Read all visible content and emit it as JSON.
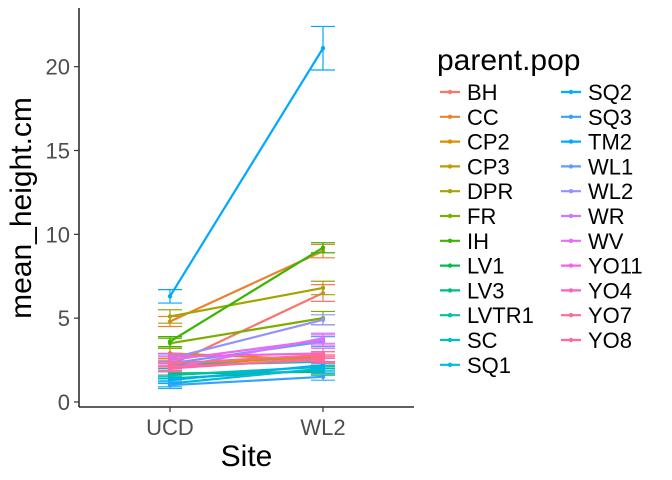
{
  "chart_data": {
    "type": "line",
    "xlabel": "Site",
    "ylabel": "mean_height.cm",
    "categories": [
      "UCD",
      "WL2"
    ],
    "ylim": [
      -0.3,
      23.5
    ],
    "yticks": [
      0,
      5,
      10,
      15,
      20
    ],
    "grid": false,
    "error_bars": true,
    "legend": {
      "title": "parent.pop",
      "placement": "right",
      "columns": 2
    },
    "series": [
      {
        "name": "BH",
        "color": "#F8766D",
        "values": [
          2.2,
          6.5
        ],
        "errors": [
          0.2,
          0.5
        ]
      },
      {
        "name": "CC",
        "color": "#EA8331",
        "values": [
          4.8,
          9.0
        ],
        "errors": [
          0.3,
          0.4
        ]
      },
      {
        "name": "CP2",
        "color": "#D89000",
        "values": [
          2.9,
          2.5
        ],
        "errors": [
          0.3,
          0.3
        ]
      },
      {
        "name": "CP3",
        "color": "#C09B00",
        "values": [
          2.2,
          2.7
        ],
        "errors": [
          0.3,
          0.3
        ]
      },
      {
        "name": "DPR",
        "color": "#A3A500",
        "values": [
          5.1,
          6.8
        ],
        "errors": [
          0.4,
          0.4
        ]
      },
      {
        "name": "FR",
        "color": "#7CAE00",
        "values": [
          3.5,
          5.0
        ],
        "errors": [
          0.3,
          0.4
        ]
      },
      {
        "name": "IH",
        "color": "#39B600",
        "values": [
          3.6,
          9.2
        ],
        "errors": [
          0.3,
          0.3
        ]
      },
      {
        "name": "LV1",
        "color": "#00BB4E",
        "values": [
          1.7,
          1.8
        ],
        "errors": [
          0.2,
          0.2
        ]
      },
      {
        "name": "LV3",
        "color": "#00BF7D",
        "values": [
          1.4,
          1.9
        ],
        "errors": [
          0.2,
          0.2
        ]
      },
      {
        "name": "LVTR1",
        "color": "#00C1A3",
        "values": [
          1.6,
          2.1
        ],
        "errors": [
          0.2,
          0.2
        ]
      },
      {
        "name": "SC",
        "color": "#00BFC4",
        "values": [
          2.2,
          2.4
        ],
        "errors": [
          0.2,
          0.2
        ]
      },
      {
        "name": "SQ1",
        "color": "#00BAE0",
        "values": [
          1.1,
          2.0
        ],
        "errors": [
          0.2,
          0.2
        ]
      },
      {
        "name": "SQ2",
        "color": "#00B0F6",
        "values": [
          1.3,
          2.2
        ],
        "errors": [
          0.2,
          0.2
        ]
      },
      {
        "name": "SQ3",
        "color": "#35A2FF",
        "values": [
          1.0,
          1.5
        ],
        "errors": [
          0.2,
          0.2
        ]
      },
      {
        "name": "TM2",
        "color": "#00A9FF",
        "values": [
          6.3,
          21.1
        ],
        "errors": [
          0.4,
          1.3
        ]
      },
      {
        "name": "WL1",
        "color": "#619CFF",
        "values": [
          2.3,
          3.6
        ],
        "errors": [
          0.2,
          0.3
        ]
      },
      {
        "name": "WL2",
        "color": "#9590FF",
        "values": [
          2.6,
          4.9
        ],
        "errors": [
          0.2,
          0.3
        ]
      },
      {
        "name": "WR",
        "color": "#C77CFF",
        "values": [
          2.0,
          3.8
        ],
        "errors": [
          0.2,
          0.3
        ]
      },
      {
        "name": "WV",
        "color": "#E76BF3",
        "values": [
          2.5,
          3.7
        ],
        "errors": [
          0.2,
          0.3
        ]
      },
      {
        "name": "YO11",
        "color": "#FA62DB",
        "values": [
          2.7,
          2.9
        ],
        "errors": [
          0.2,
          0.3
        ]
      },
      {
        "name": "YO4",
        "color": "#FF62BC",
        "values": [
          2.0,
          2.6
        ],
        "errors": [
          0.2,
          0.2
        ]
      },
      {
        "name": "YO7",
        "color": "#FF6C91",
        "values": [
          2.3,
          2.8
        ],
        "errors": [
          0.2,
          0.2
        ]
      },
      {
        "name": "YO8",
        "color": "#FF6A98",
        "values": [
          2.1,
          2.5
        ],
        "errors": [
          0.2,
          0.2
        ]
      }
    ]
  }
}
